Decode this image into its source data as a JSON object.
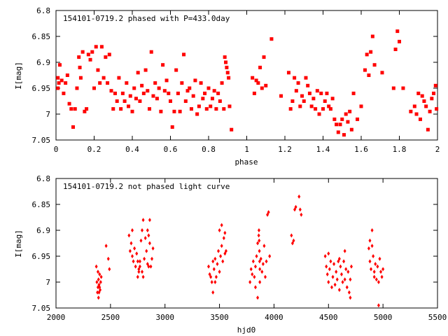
{
  "chart_data": [
    {
      "type": "scatter",
      "title": "154101-0719.2 phased with P=433.0day",
      "xlabel": "phase",
      "ylabel": "I[mag]",
      "xlim": [
        0,
        2
      ],
      "ylim": [
        7.05,
        6.8
      ],
      "y_inverted": true,
      "x_ticks": [
        0,
        0.2,
        0.4,
        0.6,
        0.8,
        1,
        1.2,
        1.4,
        1.6,
        1.8,
        2
      ],
      "x_tick_labels": [
        "0",
        "0.2",
        "0.4",
        "0.6",
        "0.8",
        "1",
        "1.2",
        "1.4",
        "1.6",
        "1.8",
        "2"
      ],
      "y_ticks": [
        6.8,
        6.85,
        6.9,
        6.95,
        7,
        7.05
      ],
      "y_tick_labels": [
        "6.8",
        "6.85",
        "6.9",
        "6.95",
        "7",
        "7.05"
      ],
      "grid": false,
      "marker_color": "#ff0000",
      "marker": "filled-square",
      "points": [
        [
          0.01,
          6.95
        ],
        [
          0.01,
          6.93
        ],
        [
          0.015,
          6.94
        ],
        [
          0.02,
          6.905
        ],
        [
          0.03,
          6.935
        ],
        [
          0.04,
          6.96
        ],
        [
          0.05,
          6.94
        ],
        [
          0.06,
          6.925
        ],
        [
          0.07,
          6.98
        ],
        [
          0.08,
          6.99
        ],
        [
          0.09,
          7.025
        ],
        [
          0.1,
          6.99
        ],
        [
          0.11,
          6.95
        ],
        [
          0.12,
          6.89
        ],
        [
          0.125,
          6.91
        ],
        [
          0.13,
          6.93
        ],
        [
          0.14,
          6.88
        ],
        [
          0.15,
          6.995
        ],
        [
          0.16,
          6.99
        ],
        [
          0.17,
          6.885
        ],
        [
          0.18,
          6.895
        ],
        [
          0.19,
          6.88
        ],
        [
          0.2,
          6.95
        ],
        [
          0.21,
          6.87
        ],
        [
          0.22,
          6.915
        ],
        [
          0.23,
          6.94
        ],
        [
          0.24,
          6.87
        ],
        [
          0.25,
          6.93
        ],
        [
          0.26,
          6.89
        ],
        [
          0.27,
          6.94
        ],
        [
          0.28,
          6.885
        ],
        [
          0.29,
          6.955
        ],
        [
          0.3,
          6.99
        ],
        [
          0.31,
          6.96
        ],
        [
          0.32,
          6.975
        ],
        [
          0.33,
          6.93
        ],
        [
          0.34,
          6.99
        ],
        [
          0.35,
          6.96
        ],
        [
          0.36,
          6.975
        ],
        [
          0.37,
          6.94
        ],
        [
          0.38,
          6.985
        ],
        [
          0.39,
          6.965
        ],
        [
          0.4,
          6.995
        ],
        [
          0.41,
          6.95
        ],
        [
          0.42,
          6.97
        ],
        [
          0.43,
          6.92
        ],
        [
          0.44,
          6.975
        ],
        [
          0.45,
          6.945
        ],
        [
          0.46,
          6.96
        ],
        [
          0.47,
          6.915
        ],
        [
          0.48,
          6.955
        ],
        [
          0.49,
          6.99
        ],
        [
          0.5,
          6.88
        ],
        [
          0.51,
          6.965
        ],
        [
          0.52,
          6.94
        ],
        [
          0.53,
          6.97
        ],
        [
          0.54,
          6.95
        ],
        [
          0.55,
          6.995
        ],
        [
          0.56,
          6.905
        ],
        [
          0.57,
          6.955
        ],
        [
          0.58,
          6.935
        ],
        [
          0.59,
          6.96
        ],
        [
          0.6,
          6.975
        ],
        [
          0.61,
          7.025
        ],
        [
          0.62,
          6.995
        ],
        [
          0.63,
          6.915
        ],
        [
          0.64,
          6.96
        ],
        [
          0.65,
          6.995
        ],
        [
          0.66,
          6.94
        ],
        [
          0.67,
          6.885
        ],
        [
          0.68,
          6.975
        ],
        [
          0.69,
          6.955
        ],
        [
          0.7,
          6.95
        ],
        [
          0.71,
          6.99
        ],
        [
          0.72,
          6.965
        ],
        [
          0.73,
          6.935
        ],
        [
          0.74,
          7.0
        ],
        [
          0.75,
          6.985
        ],
        [
          0.76,
          6.94
        ],
        [
          0.77,
          6.97
        ],
        [
          0.78,
          6.96
        ],
        [
          0.79,
          6.99
        ],
        [
          0.8,
          6.95
        ],
        [
          0.81,
          6.985
        ],
        [
          0.82,
          6.97
        ],
        [
          0.83,
          6.955
        ],
        [
          0.84,
          6.99
        ],
        [
          0.85,
          6.96
        ],
        [
          0.86,
          6.975
        ],
        [
          0.87,
          6.94
        ],
        [
          0.88,
          6.99
        ],
        [
          0.885,
          6.89
        ],
        [
          0.89,
          6.9
        ],
        [
          0.895,
          6.91
        ],
        [
          0.9,
          6.92
        ],
        [
          0.905,
          6.93
        ],
        [
          0.91,
          6.985
        ],
        [
          0.92,
          7.03
        ],
        [
          1.03,
          6.93
        ],
        [
          1.04,
          6.96
        ],
        [
          1.05,
          6.935
        ],
        [
          1.06,
          6.94
        ],
        [
          1.07,
          6.91
        ],
        [
          1.08,
          6.95
        ],
        [
          1.09,
          6.89
        ],
        [
          1.1,
          6.945
        ],
        [
          1.13,
          6.855
        ],
        [
          1.18,
          6.965
        ],
        [
          1.22,
          6.92
        ],
        [
          1.23,
          6.99
        ],
        [
          1.24,
          6.975
        ],
        [
          1.25,
          6.93
        ],
        [
          1.26,
          6.955
        ],
        [
          1.27,
          6.94
        ],
        [
          1.28,
          6.985
        ],
        [
          1.29,
          6.965
        ],
        [
          1.3,
          6.975
        ],
        [
          1.31,
          6.93
        ],
        [
          1.32,
          6.945
        ],
        [
          1.33,
          6.96
        ],
        [
          1.34,
          6.985
        ],
        [
          1.35,
          6.97
        ],
        [
          1.36,
          6.99
        ],
        [
          1.37,
          6.955
        ],
        [
          1.38,
          7.0
        ],
        [
          1.39,
          6.96
        ],
        [
          1.4,
          6.99
        ],
        [
          1.41,
          6.975
        ],
        [
          1.42,
          6.96
        ],
        [
          1.43,
          6.985
        ],
        [
          1.44,
          6.99
        ],
        [
          1.45,
          6.97
        ],
        [
          1.46,
          7.01
        ],
        [
          1.47,
          7.02
        ],
        [
          1.48,
          7.035
        ],
        [
          1.49,
          7.02
        ],
        [
          1.5,
          7.01
        ],
        [
          1.51,
          7.04
        ],
        [
          1.52,
          7.0
        ],
        [
          1.53,
          7.015
        ],
        [
          1.54,
          6.995
        ],
        [
          1.55,
          7.03
        ],
        [
          1.56,
          6.96
        ],
        [
          1.58,
          7.01
        ],
        [
          1.6,
          6.985
        ],
        [
          1.62,
          6.915
        ],
        [
          1.63,
          6.885
        ],
        [
          1.64,
          6.925
        ],
        [
          1.65,
          6.88
        ],
        [
          1.66,
          6.85
        ],
        [
          1.67,
          6.905
        ],
        [
          1.71,
          6.92
        ],
        [
          1.77,
          6.95
        ],
        [
          1.78,
          6.875
        ],
        [
          1.79,
          6.84
        ],
        [
          1.8,
          6.86
        ],
        [
          1.82,
          6.95
        ],
        [
          1.86,
          6.995
        ],
        [
          1.88,
          6.985
        ],
        [
          1.89,
          7.0
        ],
        [
          1.9,
          6.96
        ],
        [
          1.91,
          7.01
        ],
        [
          1.92,
          6.965
        ],
        [
          1.93,
          6.975
        ],
        [
          1.94,
          6.985
        ],
        [
          1.95,
          7.03
        ],
        [
          1.96,
          6.995
        ],
        [
          1.97,
          6.97
        ],
        [
          1.98,
          6.96
        ],
        [
          1.99,
          6.945
        ],
        [
          1.995,
          6.99
        ]
      ]
    },
    {
      "type": "scatter",
      "title": "154101-0719.2 not phased light curve",
      "xlabel": "hjd0",
      "ylabel": "I[mag]",
      "xlim": [
        2000,
        5500
      ],
      "ylim": [
        7.05,
        6.8
      ],
      "y_inverted": true,
      "x_ticks": [
        2000,
        2500,
        3000,
        3500,
        4000,
        4500,
        5000,
        5500
      ],
      "x_tick_labels": [
        "2000",
        "2500",
        "3000",
        "3500",
        "4000",
        "4500",
        "5000",
        "5500"
      ],
      "y_ticks": [
        6.8,
        6.85,
        6.9,
        6.95,
        7,
        7.05
      ],
      "y_tick_labels": [
        "6.8",
        "6.85",
        "6.9",
        "6.95",
        "7",
        "7.05"
      ],
      "grid": false,
      "marker_color": "#ff0000",
      "marker": "filled-diamond",
      "points": [
        [
          2370,
          6.97
        ],
        [
          2375,
          7.0
        ],
        [
          2380,
          7.02
        ],
        [
          2385,
          7.01
        ],
        [
          2390,
          6.995
        ],
        [
          2395,
          7.005
        ],
        [
          2400,
          6.985
        ],
        [
          2405,
          7.015
        ],
        [
          2410,
          7.0
        ],
        [
          2415,
          6.99
        ],
        [
          2385,
          6.98
        ],
        [
          2390,
          7.03
        ],
        [
          2395,
          7.02
        ],
        [
          2400,
          7.01
        ],
        [
          2460,
          6.93
        ],
        [
          2480,
          6.955
        ],
        [
          2490,
          6.975
        ],
        [
          2670,
          6.91
        ],
        [
          2680,
          6.94
        ],
        [
          2690,
          6.925
        ],
        [
          2700,
          6.95
        ],
        [
          2710,
          6.96
        ],
        [
          2720,
          6.935
        ],
        [
          2730,
          6.97
        ],
        [
          2740,
          6.945
        ],
        [
          2750,
          6.99
        ],
        [
          2760,
          6.975
        ],
        [
          2770,
          6.96
        ],
        [
          2780,
          6.92
        ],
        [
          2790,
          6.98
        ],
        [
          2800,
          6.99
        ],
        [
          2810,
          6.955
        ],
        [
          2820,
          6.915
        ],
        [
          2830,
          6.94
        ],
        [
          2840,
          6.965
        ],
        [
          2850,
          6.97
        ],
        [
          2860,
          6.925
        ],
        [
          2870,
          6.97
        ],
        [
          2880,
          6.955
        ],
        [
          2890,
          6.935
        ],
        [
          2700,
          6.9
        ],
        [
          2750,
          6.96
        ],
        [
          2760,
          6.98
        ],
        [
          2770,
          6.97
        ],
        [
          2790,
          6.9
        ],
        [
          2800,
          6.88
        ],
        [
          2840,
          6.9
        ],
        [
          2850,
          6.91
        ],
        [
          2860,
          6.88
        ],
        [
          3400,
          6.97
        ],
        [
          3410,
          6.985
        ],
        [
          3420,
          6.99
        ],
        [
          3430,
          7.0
        ],
        [
          3440,
          6.96
        ],
        [
          3450,
          6.975
        ],
        [
          3460,
          6.955
        ],
        [
          3470,
          6.99
        ],
        [
          3480,
          6.965
        ],
        [
          3490,
          6.94
        ],
        [
          3500,
          6.98
        ],
        [
          3510,
          6.95
        ],
        [
          3520,
          6.93
        ],
        [
          3530,
          6.96
        ],
        [
          3540,
          6.915
        ],
        [
          3550,
          6.945
        ],
        [
          3560,
          6.94
        ],
        [
          3440,
          7.02
        ],
        [
          3460,
          7.0
        ],
        [
          3500,
          6.9
        ],
        [
          3520,
          6.89
        ],
        [
          3550,
          6.905
        ],
        [
          3780,
          7.0
        ],
        [
          3790,
          6.975
        ],
        [
          3800,
          6.985
        ],
        [
          3810,
          6.96
        ],
        [
          3820,
          6.99
        ],
        [
          3830,
          6.97
        ],
        [
          3840,
          6.95
        ],
        [
          3850,
          6.925
        ],
        [
          3860,
          6.91
        ],
        [
          3862,
          6.9
        ],
        [
          3864,
          6.92
        ],
        [
          3866,
          6.94
        ],
        [
          3868,
          6.96
        ],
        [
          3870,
          6.975
        ],
        [
          3880,
          6.955
        ],
        [
          3890,
          6.98
        ],
        [
          3900,
          6.965
        ],
        [
          3910,
          6.93
        ],
        [
          3920,
          6.99
        ],
        [
          3930,
          6.96
        ],
        [
          3940,
          6.87
        ],
        [
          3950,
          6.865
        ],
        [
          3960,
          6.95
        ],
        [
          3830,
          7.01
        ],
        [
          3850,
          7.03
        ],
        [
          3870,
          7.0
        ],
        [
          4160,
          6.91
        ],
        [
          4170,
          6.925
        ],
        [
          4180,
          6.92
        ],
        [
          4190,
          6.86
        ],
        [
          4200,
          6.855
        ],
        [
          4230,
          6.835
        ],
        [
          4240,
          6.86
        ],
        [
          4250,
          6.87
        ],
        [
          4470,
          6.95
        ],
        [
          4480,
          6.97
        ],
        [
          4490,
          6.985
        ],
        [
          4500,
          7.0
        ],
        [
          4510,
          6.975
        ],
        [
          4520,
          6.96
        ],
        [
          4530,
          7.01
        ],
        [
          4540,
          6.99
        ],
        [
          4550,
          6.965
        ],
        [
          4560,
          7.005
        ],
        [
          4570,
          6.98
        ],
        [
          4580,
          6.995
        ],
        [
          4590,
          6.96
        ],
        [
          4600,
          7.015
        ],
        [
          4610,
          6.97
        ],
        [
          4620,
          6.985
        ],
        [
          4630,
          7.0
        ],
        [
          4640,
          6.96
        ],
        [
          4650,
          6.995
        ],
        [
          4660,
          6.975
        ],
        [
          4670,
          7.01
        ],
        [
          4680,
          6.98
        ],
        [
          4690,
          7.02
        ],
        [
          4700,
          6.995
        ],
        [
          4710,
          6.97
        ],
        [
          4500,
          6.945
        ],
        [
          4600,
          6.955
        ],
        [
          4650,
          6.94
        ],
        [
          4700,
          7.03
        ],
        [
          4870,
          6.935
        ],
        [
          4880,
          6.96
        ],
        [
          4890,
          6.975
        ],
        [
          4900,
          6.93
        ],
        [
          4910,
          6.95
        ],
        [
          4920,
          6.98
        ],
        [
          4930,
          6.965
        ],
        [
          4940,
          6.995
        ],
        [
          4950,
          6.97
        ],
        [
          4960,
          7.0
        ],
        [
          4970,
          6.955
        ],
        [
          4980,
          6.98
        ],
        [
          4990,
          6.99
        ],
        [
          5000,
          6.975
        ],
        [
          4880,
          6.92
        ],
        [
          4900,
          6.9
        ],
        [
          4960,
          7.045
        ],
        [
          4920,
          6.99
        ]
      ]
    }
  ]
}
